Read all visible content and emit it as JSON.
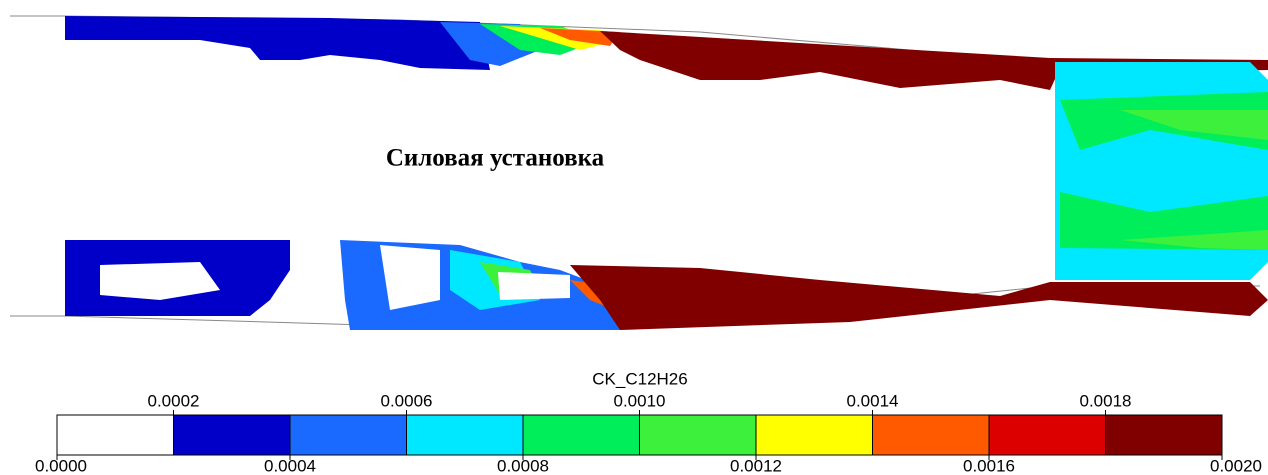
{
  "chart_data": {
    "type": "contour",
    "title": "Силовая установка",
    "colorbar": {
      "label": "CK_C12H26",
      "lim": [
        0,
        0.002
      ],
      "ticks": [
        {
          "value": 0,
          "label": "0.0000"
        },
        {
          "value": 0.0002,
          "label": "0.0002"
        },
        {
          "value": 0.0004,
          "label": "0.0004"
        },
        {
          "value": 0.0006,
          "label": "0.0006"
        },
        {
          "value": 0.0008,
          "label": "0.0008"
        },
        {
          "value": 0.001,
          "label": "0.0010"
        },
        {
          "value": 0.0012,
          "label": "0.0012"
        },
        {
          "value": 0.0014,
          "label": "0.0014"
        },
        {
          "value": 0.0016,
          "label": "0.0016"
        },
        {
          "value": 0.0018,
          "label": "0.0018"
        },
        {
          "value": 0.002,
          "label": "0.0020"
        }
      ],
      "colors": [
        "#ffffff",
        "#0000c8",
        "#1a6aff",
        "#00e8ff",
        "#00ee5a",
        "#3cf03c",
        "#ffff00",
        "#ff5a00",
        "#dc0000",
        "#800000"
      ]
    }
  }
}
